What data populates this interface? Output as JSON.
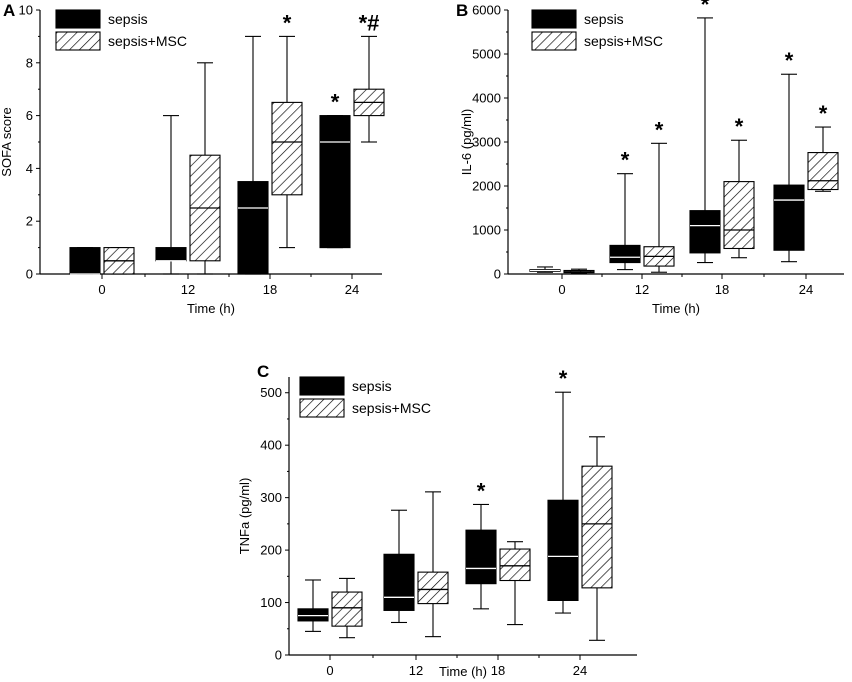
{
  "chart_data": [
    {
      "panel": "A",
      "type": "box",
      "xlabel": "Time (h)",
      "ylabel": "SOFA score",
      "ylim": [
        0,
        10
      ],
      "yticks": [
        0,
        2,
        4,
        6,
        8,
        10
      ],
      "categories": [
        "0",
        "12",
        "18",
        "24"
      ],
      "legend": [
        "sepsis",
        "sepsis+MSC"
      ],
      "series": [
        {
          "name": "sepsis",
          "fill": "solid",
          "boxes": [
            {
              "min": 0,
              "q1": 0,
              "median": 0,
              "q3": 1,
              "max": 1
            },
            {
              "min": 0,
              "q1": 0.5,
              "median": 0.5,
              "q3": 1,
              "max": 6
            },
            {
              "min": 0,
              "q1": 0,
              "median": 2.5,
              "q3": 3.5,
              "max": 9
            },
            {
              "min": 1,
              "q1": 1,
              "median": 5,
              "q3": 6,
              "max": 6
            }
          ],
          "annotations": [
            "",
            "",
            "",
            "*"
          ]
        },
        {
          "name": "sepsis+MSC",
          "fill": "hatched",
          "boxes": [
            {
              "min": 0,
              "q1": 0,
              "median": 0.5,
              "q3": 1,
              "max": 1
            },
            {
              "min": 0,
              "q1": 0.5,
              "median": 2.5,
              "q3": 4.5,
              "max": 8
            },
            {
              "min": 1,
              "q1": 3,
              "median": 5,
              "q3": 6.5,
              "max": 9
            },
            {
              "min": 5,
              "q1": 6,
              "median": 6.5,
              "q3": 7,
              "max": 9
            }
          ],
          "annotations": [
            "",
            "",
            "*",
            "*#"
          ]
        }
      ]
    },
    {
      "panel": "B",
      "type": "box",
      "xlabel": "Time (h)",
      "ylabel": "IL-6 (pg/ml)",
      "ylim": [
        0,
        6000
      ],
      "yticks": [
        0,
        1000,
        2000,
        3000,
        4000,
        5000,
        6000
      ],
      "categories": [
        "0",
        "12",
        "18",
        "24"
      ],
      "legend": [
        "sepsis",
        "sepsis+MSC"
      ],
      "series": [
        {
          "name": "sepsis",
          "fill": "solid",
          "boxes": [
            {
              "min": 40,
              "q1": 60,
              "median": 80,
              "q3": 100,
              "max": 160
            },
            {
              "min": 100,
              "q1": 260,
              "median": 380,
              "q3": 650,
              "max": 2280
            },
            {
              "min": 260,
              "q1": 480,
              "median": 1100,
              "q3": 1440,
              "max": 5820
            },
            {
              "min": 280,
              "q1": 540,
              "median": 1680,
              "q3": 2020,
              "max": 4540
            }
          ],
          "annotations": [
            "",
            "*",
            "*",
            "*"
          ]
        },
        {
          "name": "sepsis+MSC",
          "fill": "hatched",
          "boxes": [
            {
              "min": 10,
              "q1": 30,
              "median": 50,
              "q3": 80,
              "max": 110
            },
            {
              "min": 40,
              "q1": 180,
              "median": 400,
              "q3": 620,
              "max": 2970
            },
            {
              "min": 370,
              "q1": 580,
              "median": 1000,
              "q3": 2100,
              "max": 3040
            },
            {
              "min": 1880,
              "q1": 1920,
              "median": 2120,
              "q3": 2760,
              "max": 3340
            }
          ],
          "annotations": [
            "",
            "*",
            "*",
            "*"
          ]
        }
      ]
    },
    {
      "panel": "C",
      "type": "box",
      "xlabel": "Time (h)",
      "ylabel": "TNFa (pg/ml)",
      "ylim": [
        0,
        530
      ],
      "yticks": [
        0,
        100,
        200,
        300,
        400,
        500
      ],
      "categories": [
        "0",
        "12",
        "18",
        "24"
      ],
      "legend": [
        "sepsis",
        "sepsis+MSC"
      ],
      "series": [
        {
          "name": "sepsis",
          "fill": "solid",
          "boxes": [
            {
              "min": 45,
              "q1": 65,
              "median": 75,
              "q3": 88,
              "max": 143
            },
            {
              "min": 62,
              "q1": 85,
              "median": 110,
              "q3": 192,
              "max": 276
            },
            {
              "min": 88,
              "q1": 136,
              "median": 165,
              "q3": 238,
              "max": 287
            },
            {
              "min": 80,
              "q1": 104,
              "median": 188,
              "q3": 295,
              "max": 501
            }
          ],
          "annotations": [
            "",
            "",
            "*",
            "*"
          ]
        },
        {
          "name": "sepsis+MSC",
          "fill": "hatched",
          "boxes": [
            {
              "min": 33,
              "q1": 55,
              "median": 90,
              "q3": 120,
              "max": 146
            },
            {
              "min": 35,
              "q1": 98,
              "median": 125,
              "q3": 158,
              "max": 311
            },
            {
              "min": 58,
              "q1": 142,
              "median": 170,
              "q3": 202,
              "max": 216
            },
            {
              "min": 28,
              "q1": 128,
              "median": 250,
              "q3": 360,
              "max": 416
            }
          ],
          "annotations": [
            "",
            "",
            "",
            ""
          ]
        }
      ]
    }
  ]
}
